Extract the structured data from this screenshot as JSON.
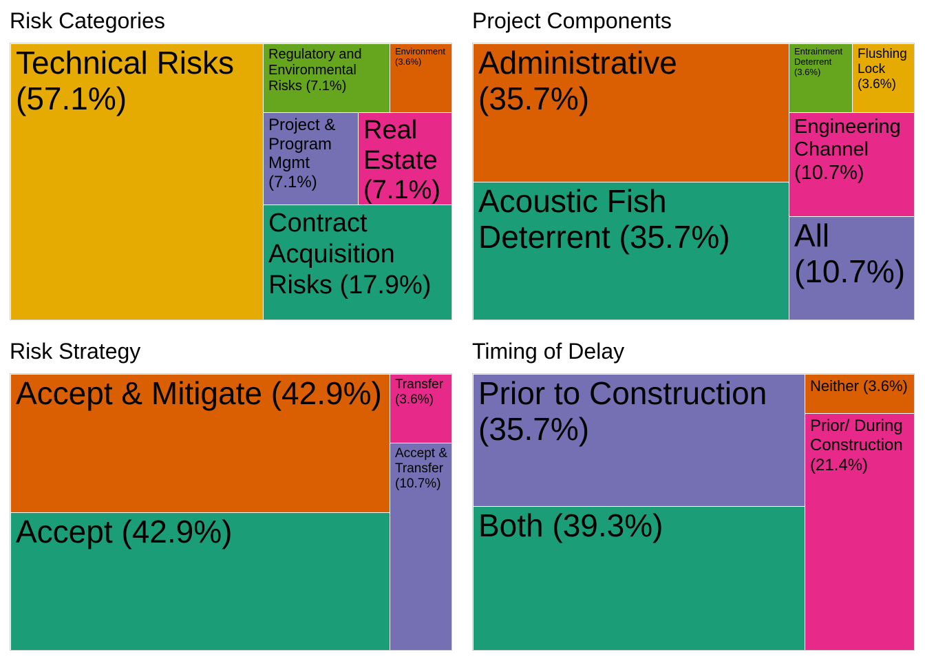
{
  "colors": {
    "yellow": "#E6AB02",
    "green": "#66A61E",
    "orange": "#D95F02",
    "purple": "#7570B3",
    "pink": "#E7298A",
    "teal": "#1B9E77"
  },
  "chart_data": [
    {
      "type": "treemap",
      "title": "Risk Categories",
      "items": [
        {
          "label": "Technical Risks (57.1%)",
          "value": 57.1,
          "color": "#E6AB02"
        },
        {
          "label": "Contract Acquisition Risks (17.9%)",
          "value": 17.9,
          "color": "#1B9E77"
        },
        {
          "label": "Regulatory and Environmental Risks (7.1%)",
          "value": 7.1,
          "color": "#66A61E"
        },
        {
          "label": "Project & Program Mgmt (7.1%)",
          "value": 7.1,
          "color": "#7570B3"
        },
        {
          "label": "Real Estate (7.1%)",
          "value": 7.1,
          "color": "#E7298A"
        },
        {
          "label": "Environment (3.6%)",
          "value": 3.6,
          "color": "#D95F02"
        }
      ]
    },
    {
      "type": "treemap",
      "title": "Project Components",
      "items": [
        {
          "label": "Administrative (35.7%)",
          "value": 35.7,
          "color": "#D95F02"
        },
        {
          "label": "Acoustic Fish Deterrent (35.7%)",
          "value": 35.7,
          "color": "#1B9E77"
        },
        {
          "label": "Engineering Channel (10.7%)",
          "value": 10.7,
          "color": "#E7298A"
        },
        {
          "label": "All (10.7%)",
          "value": 10.7,
          "color": "#7570B3"
        },
        {
          "label": "Entrainment Deterrent (3.6%)",
          "value": 3.6,
          "color": "#66A61E"
        },
        {
          "label": "Flushing Lock (3.6%)",
          "value": 3.6,
          "color": "#E6AB02"
        }
      ]
    },
    {
      "type": "treemap",
      "title": "Risk Strategy",
      "items": [
        {
          "label": "Accept & Mitigate (42.9%)",
          "value": 42.9,
          "color": "#D95F02"
        },
        {
          "label": "Accept (42.9%)",
          "value": 42.9,
          "color": "#1B9E77"
        },
        {
          "label": "Accept & Transfer (10.7%)",
          "value": 10.7,
          "color": "#7570B3"
        },
        {
          "label": "Transfer (3.6%)",
          "value": 3.6,
          "color": "#E7298A"
        }
      ]
    },
    {
      "type": "treemap",
      "title": "Timing of Delay",
      "items": [
        {
          "label": "Both (39.3%)",
          "value": 39.3,
          "color": "#1B9E77"
        },
        {
          "label": "Prior to Construction (35.7%)",
          "value": 35.7,
          "color": "#7570B3"
        },
        {
          "label": "Prior/ During Construction (21.4%)",
          "value": 21.4,
          "color": "#E7298A"
        },
        {
          "label": "Neither (3.6%)",
          "value": 3.6,
          "color": "#D95F02"
        }
      ]
    }
  ]
}
